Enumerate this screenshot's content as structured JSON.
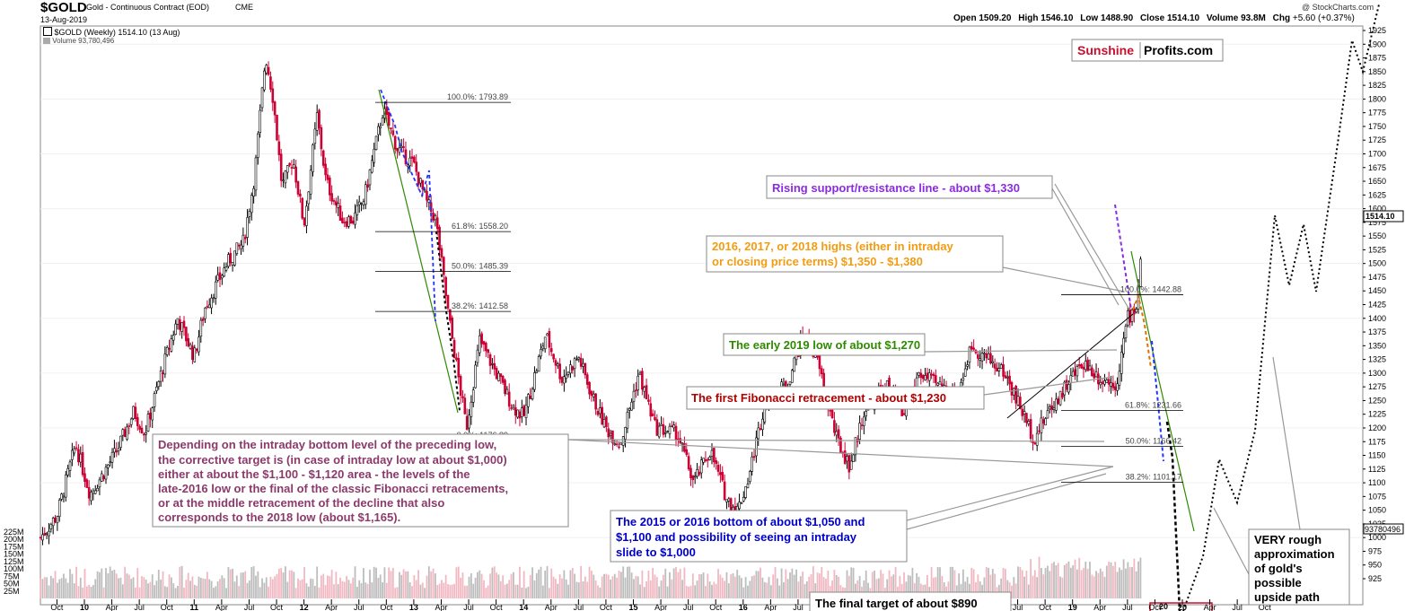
{
  "header": {
    "symbol": "$GOLD",
    "name": "Gold - Continuous Contract (EOD)",
    "exchange": "CME",
    "date": "13-Aug-2019",
    "copyright": "@ StockCharts.com",
    "open_label": "Open",
    "open": "1509.20",
    "high_label": "High",
    "high": "1546.10",
    "low_label": "Low",
    "low": "1488.90",
    "close_label": "Close",
    "close": "1514.10",
    "volume_label": "Volume",
    "volume": "93.8M",
    "chg_label": "Chg",
    "chg": "+5.60 (+0.37%)",
    "legend_price": "$GOLD (Weekly) 1514.10 (13 Aug)",
    "legend_volume": "Volume 93,780,496"
  },
  "logo": {
    "part1": "Sunshine",
    "part2": "Profits.com"
  },
  "tags": {
    "last_price": "1514.10",
    "last_volume": "93780496"
  },
  "colors": {
    "up": "#000000",
    "down": "#cc0033",
    "vol_up": "#bdbdbd",
    "vol_down": "#f2b8c2",
    "purple": "#8a2be2",
    "orange": "#f39c12",
    "green": "#2e8b00",
    "darkred": "#b00000",
    "navy": "#0000cc",
    "mauve": "#8b3a6a",
    "blue_dash": "#2233ff",
    "brand_red": "#c8102e"
  },
  "annotations": {
    "rising": "Rising support/resistance line - about $1,330",
    "highs_1": "2016, 2017, or 2018 highs (either in intraday",
    "highs_2": "or closing price terms) $1,350 - $1,380",
    "early2019": "The early 2019 low of about $1,270",
    "fib_first": "The first Fibonacci retracement - about $1,230",
    "dep_1": "Depending on the intraday bottom level of the preceding low,",
    "dep_2": "the corrective target is (in case of intraday low at about $1,000)",
    "dep_3": "either at about the $1,100 - $1,120 area - the levels of the",
    "dep_4": "late-2016 low or the final of the classic Fibonacci retracements,",
    "dep_5": "or at the middle retracement of the decline that also",
    "dep_6": "corresponds to the 2018 low (about $1,165).",
    "b2015_1": "The 2015 or 2016 bottom of about $1,050 and",
    "b2015_2": "$1,100 and possibility of seeing an intraday",
    "b2015_3": "slide to $1,000",
    "final": "The final target of about $890",
    "rough_1": "VERY rough",
    "rough_2": "approximation",
    "rough_3": "of gold's",
    "rough_4": "possible",
    "rough_5": "upside path"
  },
  "chart_data": {
    "type": "candlestick",
    "title": "$GOLD Gold - Continuous Contract (EOD) CME",
    "period": "Weekly",
    "y_axis": {
      "min": 900,
      "max": 1925,
      "side": "right",
      "ticks": [
        925,
        950,
        975,
        1000,
        1025,
        1050,
        1075,
        1100,
        1125,
        1150,
        1175,
        1200,
        1225,
        1250,
        1275,
        1300,
        1325,
        1350,
        1375,
        1400,
        1425,
        1450,
        1475,
        1500,
        1525,
        1550,
        1575,
        1600,
        1625,
        1650,
        1675,
        1700,
        1725,
        1750,
        1775,
        1800,
        1825,
        1850,
        1875,
        1900,
        1925
      ]
    },
    "volume_axis": {
      "ticks": [
        "225M",
        "200M",
        "175M",
        "150M",
        "125M",
        "100M",
        "75M",
        "50M",
        "25M"
      ],
      "values": [
        225,
        200,
        175,
        150,
        125,
        100,
        75,
        50,
        25
      ],
      "unit": "M"
    },
    "x_axis": {
      "labels": [
        {
          "t": "Oct",
          "d": 2009.75
        },
        {
          "t": "10",
          "d": 2010.0
        },
        {
          "t": "Apr",
          "d": 2010.25
        },
        {
          "t": "Jul",
          "d": 2010.5
        },
        {
          "t": "Oct",
          "d": 2010.75
        },
        {
          "t": "11",
          "d": 2011.0
        },
        {
          "t": "Apr",
          "d": 2011.25
        },
        {
          "t": "Jul",
          "d": 2011.5
        },
        {
          "t": "Oct",
          "d": 2011.75
        },
        {
          "t": "12",
          "d": 2012.0
        },
        {
          "t": "Apr",
          "d": 2012.25
        },
        {
          "t": "Jul",
          "d": 2012.5
        },
        {
          "t": "Oct",
          "d": 2012.75
        },
        {
          "t": "13",
          "d": 2013.0
        },
        {
          "t": "Apr",
          "d": 2013.25
        },
        {
          "t": "Jul",
          "d": 2013.5
        },
        {
          "t": "Oct",
          "d": 2013.75
        },
        {
          "t": "14",
          "d": 2014.0
        },
        {
          "t": "Apr",
          "d": 2014.25
        },
        {
          "t": "Jul",
          "d": 2014.5
        },
        {
          "t": "Oct",
          "d": 2014.75
        },
        {
          "t": "15",
          "d": 2015.0
        },
        {
          "t": "Apr",
          "d": 2015.25
        },
        {
          "t": "Jul",
          "d": 2015.5
        },
        {
          "t": "Oct",
          "d": 2015.75
        },
        {
          "t": "16",
          "d": 2016.0
        },
        {
          "t": "Apr",
          "d": 2016.25
        },
        {
          "t": "Jul",
          "d": 2016.5
        },
        {
          "t": "Oct",
          "d": 2016.75
        },
        {
          "t": "17",
          "d": 2017.0
        },
        {
          "t": "Apr",
          "d": 2017.25
        },
        {
          "t": "Jul",
          "d": 2017.5
        },
        {
          "t": "Oct",
          "d": 2017.75
        },
        {
          "t": "18",
          "d": 2018.0
        },
        {
          "t": "Apr",
          "d": 2018.25
        },
        {
          "t": "Jul",
          "d": 2018.5
        },
        {
          "t": "Oct",
          "d": 2018.75
        },
        {
          "t": "19",
          "d": 2019.0
        },
        {
          "t": "Apr",
          "d": 2019.25
        },
        {
          "t": "Jul",
          "d": 2019.5
        },
        {
          "t": "Oct",
          "d": 2019.75
        },
        {
          "t": "20",
          "d": 2020.0
        },
        {
          "t": "Apr",
          "d": 2020.25
        },
        {
          "t": "Jul",
          "d": 2020.5
        },
        {
          "t": "Oct",
          "d": 2020.75
        }
      ]
    },
    "price_path": [
      [
        2009.6,
        1000
      ],
      [
        2009.75,
        1040
      ],
      [
        2009.92,
        1170
      ],
      [
        2010.05,
        1080
      ],
      [
        2010.15,
        1110
      ],
      [
        2010.3,
        1160
      ],
      [
        2010.45,
        1230
      ],
      [
        2010.55,
        1190
      ],
      [
        2010.7,
        1300
      ],
      [
        2010.85,
        1400
      ],
      [
        2011.0,
        1330
      ],
      [
        2011.1,
        1420
      ],
      [
        2011.3,
        1500
      ],
      [
        2011.45,
        1540
      ],
      [
        2011.55,
        1660
      ],
      [
        2011.65,
        1880
      ],
      [
        2011.72,
        1800
      ],
      [
        2011.8,
        1640
      ],
      [
        2011.9,
        1690
      ],
      [
        2012.0,
        1570
      ],
      [
        2012.12,
        1770
      ],
      [
        2012.2,
        1650
      ],
      [
        2012.35,
        1580
      ],
      [
        2012.45,
        1580
      ],
      [
        2012.55,
        1620
      ],
      [
        2012.72,
        1780
      ],
      [
        2012.85,
        1710
      ],
      [
        2013.0,
        1680
      ],
      [
        2013.12,
        1610
      ],
      [
        2013.2,
        1580
      ],
      [
        2013.32,
        1400
      ],
      [
        2013.48,
        1200
      ],
      [
        2013.6,
        1360
      ],
      [
        2013.7,
        1320
      ],
      [
        2013.8,
        1280
      ],
      [
        2013.9,
        1240
      ],
      [
        2014.0,
        1220
      ],
      [
        2014.2,
        1370
      ],
      [
        2014.35,
        1290
      ],
      [
        2014.5,
        1330
      ],
      [
        2014.62,
        1260
      ],
      [
        2014.75,
        1200
      ],
      [
        2014.88,
        1170
      ],
      [
        2015.05,
        1300
      ],
      [
        2015.2,
        1200
      ],
      [
        2015.4,
        1190
      ],
      [
        2015.55,
        1100
      ],
      [
        2015.7,
        1160
      ],
      [
        2015.85,
        1070
      ],
      [
        2015.95,
        1050
      ],
      [
        2016.05,
        1110
      ],
      [
        2016.2,
        1250
      ],
      [
        2016.4,
        1280
      ],
      [
        2016.55,
        1370
      ],
      [
        2016.68,
        1320
      ],
      [
        2016.85,
        1180
      ],
      [
        2016.97,
        1130
      ],
      [
        2017.1,
        1230
      ],
      [
        2017.3,
        1280
      ],
      [
        2017.45,
        1220
      ],
      [
        2017.6,
        1300
      ],
      [
        2017.75,
        1280
      ],
      [
        2017.95,
        1260
      ],
      [
        2018.08,
        1350
      ],
      [
        2018.2,
        1330
      ],
      [
        2018.38,
        1300
      ],
      [
        2018.52,
        1240
      ],
      [
        2018.65,
        1180
      ],
      [
        2018.78,
        1230
      ],
      [
        2018.95,
        1280
      ],
      [
        2019.1,
        1320
      ],
      [
        2019.25,
        1290
      ],
      [
        2019.4,
        1280
      ],
      [
        2019.5,
        1400
      ],
      [
        2019.58,
        1420
      ],
      [
        2019.62,
        1510
      ]
    ],
    "fib_2013": {
      "levels": [
        {
          "label": "100.0%: 1793.89",
          "value": 1793.89
        },
        {
          "label": "61.8%: 1558.20",
          "value": 1558.2
        },
        {
          "label": "50.0%: 1485.39",
          "value": 1485.39
        },
        {
          "label": "38.2%: 1412.58",
          "value": 1412.58
        },
        {
          "label": "0.0%: 1176.89",
          "value": 1176.89
        }
      ]
    },
    "fib_2019": {
      "levels": [
        {
          "label": "100.0%: 1442.88",
          "value": 1442.88
        },
        {
          "label": "61.8%: 1231.66",
          "value": 1231.66
        },
        {
          "label": "50.0%: 1166.42",
          "value": 1166.42
        },
        {
          "label": "38.2%: 1101.17",
          "value": 1101.17
        }
      ]
    }
  }
}
